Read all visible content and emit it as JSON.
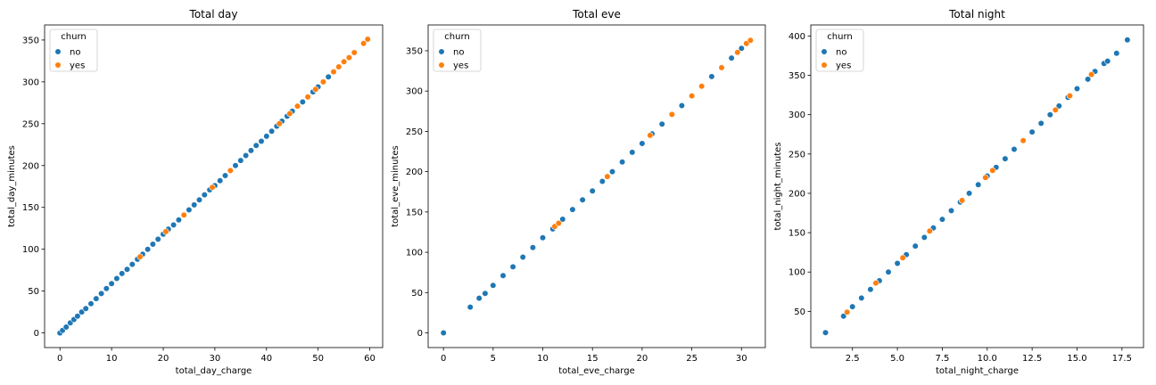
{
  "colors": {
    "no": "#1f77b4",
    "yes": "#ff7f0e"
  },
  "chart_data": [
    {
      "type": "scatter",
      "title": "Total day",
      "xlabel": "total_day_charge",
      "ylabel": "total_day_minutes",
      "xlim": [
        -2.98,
        62.5
      ],
      "ylim": [
        -17.5,
        368
      ],
      "xticks": [
        0,
        10,
        20,
        30,
        40,
        50,
        60
      ],
      "yticks": [
        0,
        50,
        100,
        150,
        200,
        250,
        300,
        350
      ],
      "grid": false,
      "legend": {
        "title": "churn",
        "position": "top-left",
        "entries": [
          "no",
          "yes"
        ]
      },
      "series": [
        {
          "name": "no",
          "color": "#1f77b4",
          "points": [
            [
              0,
              0
            ],
            [
              0.5,
              3
            ],
            [
              1.2,
              7
            ],
            [
              2.0,
              12
            ],
            [
              2.7,
              16
            ],
            [
              3.4,
              20
            ],
            [
              4.2,
              25
            ],
            [
              5.0,
              29
            ],
            [
              6.0,
              35
            ],
            [
              7.0,
              41
            ],
            [
              8.0,
              47
            ],
            [
              9.0,
              53
            ],
            [
              10.0,
              59
            ],
            [
              11.0,
              65
            ],
            [
              12.0,
              71
            ],
            [
              13.0,
              76
            ],
            [
              14.0,
              82
            ],
            [
              15.0,
              88
            ],
            [
              16.0,
              94
            ],
            [
              17.0,
              100
            ],
            [
              18.0,
              106
            ],
            [
              19.0,
              112
            ],
            [
              20.0,
              118
            ],
            [
              21.0,
              124
            ],
            [
              22.0,
              129
            ],
            [
              23.0,
              135
            ],
            [
              24.0,
              141
            ],
            [
              25.0,
              147
            ],
            [
              26.0,
              153
            ],
            [
              27.0,
              159
            ],
            [
              28.0,
              165
            ],
            [
              29.0,
              171
            ],
            [
              30.0,
              176
            ],
            [
              31.0,
              182
            ],
            [
              32.0,
              188
            ],
            [
              33.0,
              194
            ],
            [
              34.0,
              200
            ],
            [
              35.0,
              206
            ],
            [
              36.0,
              212
            ],
            [
              37.0,
              218
            ],
            [
              38.0,
              224
            ],
            [
              39.0,
              229
            ],
            [
              40.0,
              235
            ],
            [
              41.0,
              241
            ],
            [
              42.0,
              247
            ],
            [
              43.0,
              253
            ],
            [
              44.0,
              259
            ],
            [
              45.0,
              265
            ],
            [
              46.0,
              271
            ],
            [
              47.0,
              276
            ],
            [
              48.0,
              282
            ],
            [
              49.0,
              288
            ],
            [
              50.0,
              294
            ],
            [
              51.0,
              300
            ],
            [
              52.0,
              306
            ],
            [
              53.0,
              312
            ],
            [
              54.0,
              318
            ],
            [
              55.0,
              324
            ],
            [
              56.0,
              329
            ],
            [
              57.0,
              335
            ]
          ]
        },
        {
          "name": "yes",
          "color": "#ff7f0e",
          "points": [
            [
              15.5,
              91
            ],
            [
              20.5,
              121
            ],
            [
              24.0,
              141
            ],
            [
              29.5,
              174
            ],
            [
              33.0,
              194
            ],
            [
              42.5,
              250
            ],
            [
              44.5,
              262
            ],
            [
              46.0,
              271
            ],
            [
              48.0,
              282
            ],
            [
              49.5,
              291
            ],
            [
              51.0,
              300
            ],
            [
              53.0,
              312
            ],
            [
              54.0,
              318
            ],
            [
              55.0,
              324
            ],
            [
              56.0,
              329
            ],
            [
              57.0,
              335
            ],
            [
              58.8,
              346
            ],
            [
              59.6,
              351
            ]
          ]
        }
      ]
    },
    {
      "type": "scatter",
      "title": "Total eve",
      "xlabel": "total_eve_charge",
      "ylabel": "total_eve_minutes",
      "xlim": [
        -1.54,
        32.4
      ],
      "ylim": [
        -18.2,
        382
      ],
      "xticks": [
        0,
        5,
        10,
        15,
        20,
        25,
        30
      ],
      "yticks": [
        0,
        50,
        100,
        150,
        200,
        250,
        300,
        350
      ],
      "grid": false,
      "legend": {
        "title": "churn",
        "position": "top-left",
        "entries": [
          "no",
          "yes"
        ]
      },
      "series": [
        {
          "name": "no",
          "color": "#1f77b4",
          "points": [
            [
              0,
              0
            ],
            [
              2.7,
              32
            ],
            [
              3.6,
              43
            ],
            [
              4.2,
              49
            ],
            [
              5.0,
              59
            ],
            [
              6.0,
              71
            ],
            [
              7.0,
              82
            ],
            [
              8.0,
              94
            ],
            [
              9.0,
              106
            ],
            [
              10.0,
              118
            ],
            [
              11.0,
              129
            ],
            [
              12.0,
              141
            ],
            [
              13.0,
              153
            ],
            [
              14.0,
              165
            ],
            [
              15.0,
              176
            ],
            [
              16.0,
              188
            ],
            [
              17.0,
              200
            ],
            [
              18.0,
              212
            ],
            [
              19.0,
              224
            ],
            [
              20.0,
              235
            ],
            [
              21.0,
              247
            ],
            [
              22.0,
              259
            ],
            [
              23.0,
              271
            ],
            [
              24.0,
              282
            ],
            [
              25.0,
              294
            ],
            [
              26.0,
              306
            ],
            [
              27.0,
              318
            ],
            [
              28.0,
              329
            ],
            [
              29.0,
              341
            ],
            [
              30.0,
              353
            ]
          ]
        },
        {
          "name": "yes",
          "color": "#ff7f0e",
          "points": [
            [
              11.2,
              132
            ],
            [
              11.6,
              136
            ],
            [
              16.5,
              194
            ],
            [
              20.8,
              245
            ],
            [
              23.0,
              271
            ],
            [
              25.0,
              294
            ],
            [
              26.0,
              306
            ],
            [
              28.0,
              329
            ],
            [
              29.6,
              348
            ],
            [
              30.5,
              359
            ],
            [
              30.9,
              363
            ]
          ]
        }
      ]
    },
    {
      "type": "scatter",
      "title": "Total night",
      "xlabel": "total_night_charge",
      "ylabel": "total_night_minutes",
      "xlim": [
        0.18,
        18.7
      ],
      "ylim": [
        4,
        414
      ],
      "xticks": [
        2.5,
        5.0,
        7.5,
        10.0,
        12.5,
        15.0,
        17.5
      ],
      "xticklabels": [
        "2.5",
        "5.0",
        "7.5",
        "10.0",
        "12.5",
        "15.0",
        "17.5"
      ],
      "yticks": [
        50,
        100,
        150,
        200,
        250,
        300,
        350,
        400
      ],
      "grid": false,
      "legend": {
        "title": "churn",
        "position": "top-left",
        "entries": [
          "no",
          "yes"
        ]
      },
      "series": [
        {
          "name": "no",
          "color": "#1f77b4",
          "points": [
            [
              1.0,
              23
            ],
            [
              2.0,
              44
            ],
            [
              2.5,
              56
            ],
            [
              3.0,
              67
            ],
            [
              3.5,
              78
            ],
            [
              4.0,
              89
            ],
            [
              4.5,
              100
            ],
            [
              5.0,
              111
            ],
            [
              5.5,
              122
            ],
            [
              6.0,
              133
            ],
            [
              6.5,
              144
            ],
            [
              7.0,
              156
            ],
            [
              7.5,
              167
            ],
            [
              8.0,
              178
            ],
            [
              8.5,
              189
            ],
            [
              9.0,
              200
            ],
            [
              9.5,
              211
            ],
            [
              10.0,
              222
            ],
            [
              10.5,
              233
            ],
            [
              11.0,
              244
            ],
            [
              11.5,
              256
            ],
            [
              12.0,
              267
            ],
            [
              12.5,
              278
            ],
            [
              13.0,
              289
            ],
            [
              13.5,
              300
            ],
            [
              14.0,
              311
            ],
            [
              14.5,
              322
            ],
            [
              15.0,
              333
            ],
            [
              15.6,
              345
            ],
            [
              16.0,
              355
            ],
            [
              16.5,
              365
            ],
            [
              16.7,
              368
            ],
            [
              17.2,
              378
            ],
            [
              17.8,
              395
            ]
          ]
        },
        {
          "name": "yes",
          "color": "#ff7f0e",
          "points": [
            [
              2.2,
              49
            ],
            [
              3.8,
              86
            ],
            [
              5.3,
              118
            ],
            [
              6.8,
              152
            ],
            [
              8.6,
              191
            ],
            [
              9.9,
              220
            ],
            [
              10.3,
              229
            ],
            [
              12.0,
              267
            ],
            [
              13.8,
              306
            ],
            [
              14.6,
              324
            ],
            [
              15.8,
              351
            ]
          ]
        }
      ]
    }
  ]
}
